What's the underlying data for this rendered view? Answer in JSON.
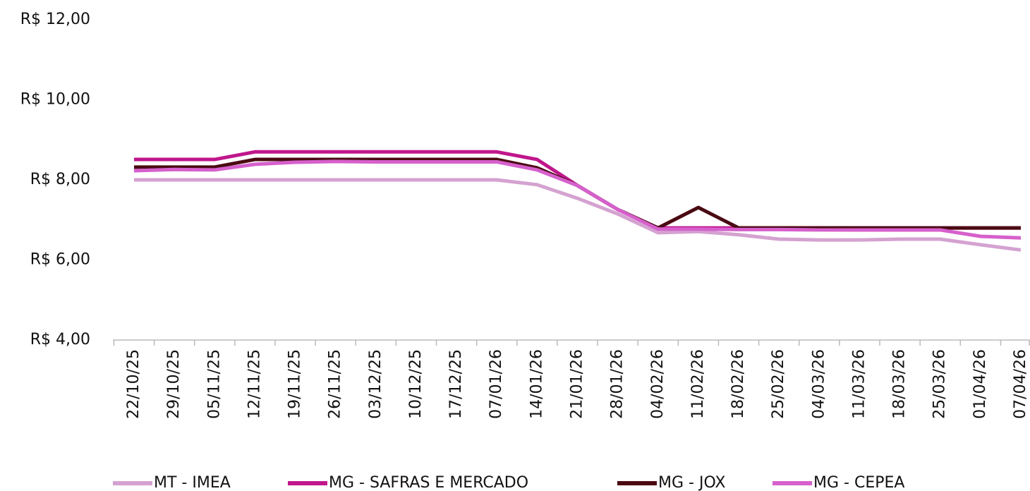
{
  "chart_data": {
    "type": "line",
    "categories": [
      "22/10/25",
      "29/10/25",
      "05/11/25",
      "12/11/25",
      "19/11/25",
      "26/11/25",
      "03/12/25",
      "10/12/25",
      "17/12/25",
      "07/01/26",
      "14/01/26",
      "21/01/26",
      "28/01/26",
      "04/02/26",
      "11/02/26",
      "18/02/26",
      "25/02/26",
      "04/03/26",
      "11/03/26",
      "18/03/26",
      "25/03/26",
      "01/04/26",
      "07/04/26"
    ],
    "series": [
      {
        "name": "MT - IMEA",
        "color": "#d4a2d0",
        "values": [
          8.0,
          8.0,
          8.0,
          8.0,
          8.0,
          8.0,
          8.0,
          8.0,
          8.0,
          8.0,
          7.88,
          7.54,
          7.15,
          6.68,
          6.71,
          6.63,
          6.52,
          6.5,
          6.5,
          6.52,
          6.52,
          6.38,
          6.25
        ]
      },
      {
        "name": "MG - SAFRAS E MERCADO",
        "color": "#c0168c",
        "values": [
          8.51,
          8.51,
          8.51,
          8.7,
          8.7,
          8.7,
          8.7,
          8.7,
          8.7,
          8.7,
          8.51,
          7.86,
          7.26,
          6.8,
          6.8,
          6.8,
          6.8,
          6.8,
          6.8,
          6.8,
          6.8,
          6.8,
          6.8
        ]
      },
      {
        "name": "MG - JOX",
        "color": "#4a0a12",
        "values": [
          8.32,
          8.32,
          8.32,
          8.51,
          8.51,
          8.51,
          8.51,
          8.51,
          8.51,
          8.51,
          8.3,
          7.86,
          7.26,
          6.8,
          7.31,
          6.8,
          6.8,
          6.8,
          6.8,
          6.8,
          6.8,
          6.8,
          6.8
        ]
      },
      {
        "name": "MG - CEPEA",
        "color": "#d660cc",
        "values": [
          8.23,
          8.26,
          8.25,
          8.39,
          8.44,
          8.46,
          8.45,
          8.45,
          8.45,
          8.45,
          8.25,
          7.86,
          7.26,
          6.77,
          6.77,
          6.76,
          6.76,
          6.75,
          6.75,
          6.75,
          6.75,
          6.59,
          6.55
        ]
      }
    ],
    "ylim": [
      4,
      12
    ],
    "yticks": [
      {
        "value": 4,
        "label": "R$ 4,00"
      },
      {
        "value": 6,
        "label": "R$ 6,00"
      },
      {
        "value": 8,
        "label": "R$ 8,00"
      },
      {
        "value": 10,
        "label": "R$ 10,00"
      },
      {
        "value": 12,
        "label": "R$ 12,00"
      }
    ],
    "grid": false,
    "legend": "bottom"
  }
}
